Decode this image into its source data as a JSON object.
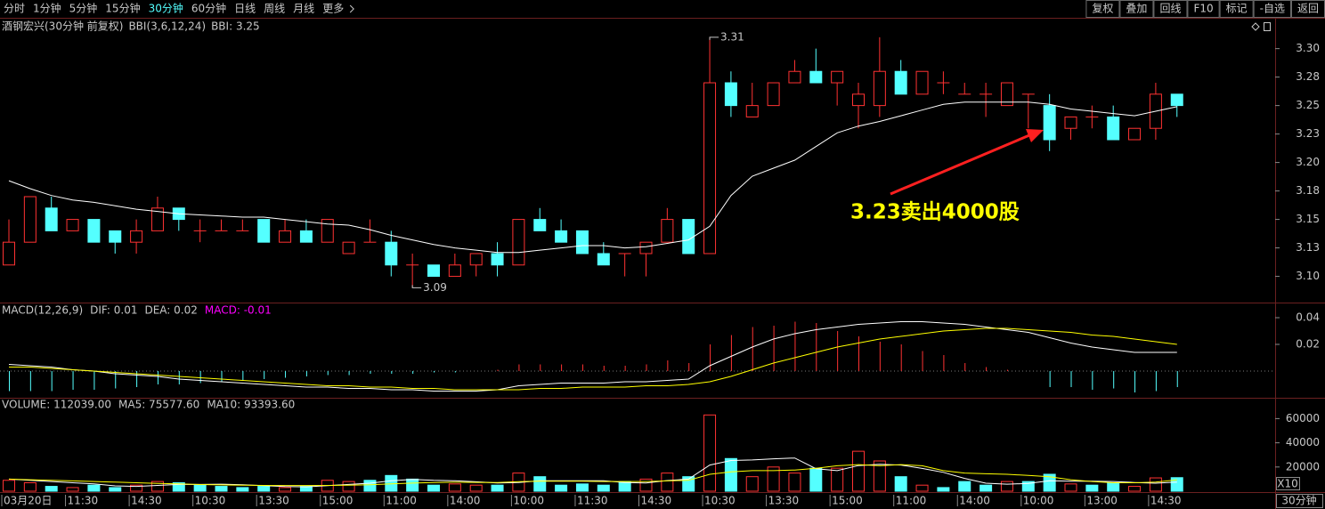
{
  "toolbar": {
    "periods": [
      "分时",
      "1分钟",
      "5分钟",
      "15分钟",
      "30分钟",
      "60分钟",
      "日线",
      "周线",
      "月线",
      "更多"
    ],
    "active": 4,
    "buttons": [
      "复权",
      "叠加",
      "回线",
      "F10",
      "标记",
      "-自选",
      "返回"
    ]
  },
  "footer": {
    "period": "30分钟"
  },
  "chart_data": [
    {
      "type": "candlestick",
      "title": "酒钢宏兴(30分钟 前复权)",
      "subtitle": "BBI(3,6,12,24)",
      "up_color": "#ff3232",
      "down_color": "#54ffff",
      "open": [
        3.11,
        3.13,
        3.16,
        3.14,
        3.15,
        3.14,
        3.13,
        3.14,
        3.16,
        3.14,
        3.14,
        3.14,
        3.15,
        3.13,
        3.14,
        3.13,
        3.12,
        3.13,
        3.13,
        3.11,
        3.11,
        3.1,
        3.11,
        3.12,
        3.11,
        3.15,
        3.14,
        3.14,
        3.12,
        3.12,
        3.12,
        3.13,
        3.15,
        3.12,
        3.27,
        3.24,
        3.25,
        3.27,
        3.28,
        3.27,
        3.25,
        3.25,
        3.28,
        3.26,
        3.27,
        3.26,
        3.26,
        3.25,
        3.26,
        3.25,
        3.23,
        3.24,
        3.24,
        3.22,
        3.23,
        3.26
      ],
      "high": [
        3.15,
        3.17,
        3.17,
        3.15,
        3.15,
        3.14,
        3.15,
        3.17,
        3.16,
        3.15,
        3.15,
        3.15,
        3.15,
        3.15,
        3.15,
        3.15,
        3.13,
        3.15,
        3.14,
        3.12,
        3.11,
        3.12,
        3.12,
        3.13,
        3.15,
        3.16,
        3.15,
        3.14,
        3.13,
        3.12,
        3.13,
        3.16,
        3.15,
        3.31,
        3.28,
        3.27,
        3.27,
        3.29,
        3.3,
        3.28,
        3.27,
        3.31,
        3.29,
        3.28,
        3.28,
        3.27,
        3.27,
        3.27,
        3.26,
        3.26,
        3.24,
        3.25,
        3.25,
        3.23,
        3.27,
        3.26
      ],
      "low": [
        3.11,
        3.13,
        3.14,
        3.14,
        3.13,
        3.12,
        3.12,
        3.14,
        3.14,
        3.13,
        3.14,
        3.14,
        3.13,
        3.13,
        3.13,
        3.13,
        3.12,
        3.13,
        3.1,
        3.09,
        3.1,
        3.1,
        3.1,
        3.1,
        3.11,
        3.14,
        3.13,
        3.12,
        3.11,
        3.1,
        3.1,
        3.13,
        3.12,
        3.12,
        3.24,
        3.24,
        3.25,
        3.27,
        3.27,
        3.25,
        3.23,
        3.24,
        3.26,
        3.26,
        3.26,
        3.26,
        3.24,
        3.25,
        3.23,
        3.21,
        3.22,
        3.23,
        3.22,
        3.22,
        3.22,
        3.24
      ],
      "close": [
        3.13,
        3.17,
        3.14,
        3.15,
        3.13,
        3.13,
        3.14,
        3.16,
        3.15,
        3.14,
        3.14,
        3.14,
        3.13,
        3.14,
        3.13,
        3.15,
        3.13,
        3.13,
        3.11,
        3.11,
        3.1,
        3.11,
        3.12,
        3.11,
        3.15,
        3.14,
        3.13,
        3.12,
        3.11,
        3.12,
        3.13,
        3.15,
        3.12,
        3.27,
        3.25,
        3.25,
        3.27,
        3.28,
        3.27,
        3.28,
        3.26,
        3.28,
        3.26,
        3.28,
        3.27,
        3.26,
        3.26,
        3.27,
        3.26,
        3.22,
        3.24,
        3.24,
        3.22,
        3.23,
        3.26,
        3.25
      ],
      "series": [
        {
          "name": "BBI: 3.25",
          "color": "#ffffff",
          "values": [
            3.184,
            3.177,
            3.171,
            3.167,
            3.165,
            3.162,
            3.159,
            3.157,
            3.155,
            3.154,
            3.153,
            3.152,
            3.152,
            3.15,
            3.148,
            3.146,
            3.145,
            3.141,
            3.136,
            3.132,
            3.128,
            3.125,
            3.123,
            3.121,
            3.121,
            3.123,
            3.125,
            3.127,
            3.127,
            3.125,
            3.126,
            3.129,
            3.132,
            3.144,
            3.171,
            3.188,
            3.195,
            3.202,
            3.214,
            3.226,
            3.232,
            3.236,
            3.241,
            3.246,
            3.251,
            3.253,
            3.253,
            3.253,
            3.253,
            3.251,
            3.247,
            3.245,
            3.243,
            3.241,
            3.245,
            3.249
          ]
        }
      ],
      "high_label": 3.31,
      "low_label": 3.09,
      "callout": "3.23卖出4000股",
      "ylim": [
        3.077,
        3.313
      ],
      "yticks": [
        {
          "value": 3.3,
          "label": "3.30"
        },
        {
          "value": 3.275,
          "label": "3.28"
        },
        {
          "value": 3.25,
          "label": "3.25"
        },
        {
          "value": 3.225,
          "label": "3.23"
        },
        {
          "value": 3.2,
          "label": "3.20"
        },
        {
          "value": 3.175,
          "label": "3.18"
        },
        {
          "value": 3.15,
          "label": "3.15"
        },
        {
          "value": 3.125,
          "label": "3.13"
        },
        {
          "value": 3.1,
          "label": "3.10"
        }
      ]
    },
    {
      "type": "macd",
      "title": "MACD(12,26,9)",
      "histogram": {
        "name": "MACD: -0.01",
        "up_color": "#ff3232",
        "down_color": "#54ffff",
        "values": [
          -0.015,
          -0.015,
          -0.015,
          -0.014,
          -0.014,
          -0.013,
          -0.012,
          -0.01,
          -0.01,
          -0.009,
          -0.008,
          -0.007,
          -0.006,
          -0.005,
          -0.004,
          -0.003,
          -0.003,
          -0.002,
          -0.002,
          -0.002,
          -0.001,
          -0.001,
          0,
          0.001,
          0.005,
          0.005,
          0.005,
          0.005,
          0.004,
          0.004,
          0.005,
          0.008,
          0.006,
          0.02,
          0.027,
          0.033,
          0.034,
          0.037,
          0.036,
          0.03,
          0.026,
          0.022,
          0.02,
          0.015,
          0.012,
          0.006,
          0.003,
          0.001,
          0,
          -0.012,
          -0.012,
          -0.014,
          -0.013,
          -0.016,
          -0.015,
          -0.012
        ]
      },
      "series": [
        {
          "name": "DIF: 0.01",
          "color": "#ffffff",
          "values": [
            0.005,
            0.004,
            0.003,
            0.001,
            0,
            -0.002,
            -0.003,
            -0.004,
            -0.006,
            -0.007,
            -0.008,
            -0.009,
            -0.01,
            -0.011,
            -0.012,
            -0.012,
            -0.013,
            -0.013,
            -0.014,
            -0.014,
            -0.015,
            -0.015,
            -0.015,
            -0.014,
            -0.011,
            -0.01,
            -0.009,
            -0.009,
            -0.009,
            -0.008,
            -0.008,
            -0.007,
            -0.006,
            0.004,
            0.011,
            0.018,
            0.024,
            0.028,
            0.031,
            0.033,
            0.035,
            0.036,
            0.037,
            0.037,
            0.036,
            0.035,
            0.033,
            0.031,
            0.029,
            0.025,
            0.021,
            0.018,
            0.016,
            0.014,
            0.014,
            0.014
          ]
        },
        {
          "name": "DEA: 0.02",
          "color": "#ffff00",
          "values": [
            0.003,
            0.003,
            0.002,
            0.001,
            0,
            -0.001,
            -0.002,
            -0.003,
            -0.004,
            -0.005,
            -0.006,
            -0.007,
            -0.008,
            -0.009,
            -0.01,
            -0.011,
            -0.011,
            -0.012,
            -0.012,
            -0.013,
            -0.013,
            -0.014,
            -0.014,
            -0.014,
            -0.014,
            -0.013,
            -0.013,
            -0.012,
            -0.012,
            -0.012,
            -0.011,
            -0.011,
            -0.01,
            -0.008,
            -0.004,
            0.001,
            0.006,
            0.01,
            0.014,
            0.018,
            0.021,
            0.024,
            0.026,
            0.028,
            0.03,
            0.031,
            0.032,
            0.032,
            0.031,
            0.03,
            0.029,
            0.027,
            0.026,
            0.024,
            0.022,
            0.02
          ]
        }
      ],
      "ylim": [
        -0.02,
        0.05
      ],
      "yticks": [
        0.04,
        0.02
      ]
    },
    {
      "type": "volume",
      "bars": {
        "name": "VOLUME: 112039.00",
        "up_color": "#ff3232",
        "down_color": "#54ffff",
        "values": [
          9000,
          7000,
          4000,
          3000,
          5000,
          3000,
          5000,
          8000,
          7000,
          5000,
          4000,
          3000,
          4000,
          3000,
          4000,
          9000,
          8000,
          9000,
          13000,
          10000,
          5000,
          6000,
          5000,
          5000,
          15000,
          12000,
          5000,
          6000,
          5000,
          8000,
          10000,
          15000,
          12000,
          63000,
          27000,
          12000,
          20000,
          15000,
          19000,
          19000,
          33000,
          25000,
          12000,
          5000,
          3000,
          8000,
          5000,
          8000,
          8000,
          14000,
          6000,
          5000,
          7000,
          4000,
          11000,
          11204
        ]
      },
      "series": [
        {
          "name": "MA5: 75577.60",
          "color": "#ffffff",
          "values": [
            10000,
            9000,
            8000,
            7000,
            6000,
            4400,
            4000,
            4800,
            5600,
            5600,
            5800,
            5400,
            4600,
            3800,
            3600,
            4600,
            5600,
            6600,
            8600,
            9800,
            9000,
            8600,
            7800,
            6800,
            7200,
            8600,
            8600,
            8600,
            8600,
            7200,
            6800,
            8800,
            10000,
            21600,
            25400,
            25800,
            26800,
            27400,
            18600,
            17000,
            21200,
            22200,
            21600,
            18800,
            15600,
            10600,
            6600,
            5800,
            6400,
            8600,
            8200,
            8200,
            8000,
            7200,
            6600,
            7558
          ]
        },
        {
          "name": "MA10: 93393.60",
          "color": "#ffff00",
          "values": [
            10000,
            9500,
            9000,
            8500,
            8000,
            7500,
            7000,
            6500,
            6000,
            5500,
            5200,
            5000,
            4800,
            4700,
            4700,
            4800,
            5000,
            5300,
            6000,
            6700,
            7200,
            7400,
            7300,
            7200,
            7900,
            8300,
            8300,
            8200,
            8000,
            8000,
            8000,
            8500,
            9000,
            14000,
            16000,
            17000,
            17000,
            17500,
            19000,
            21000,
            22000,
            21000,
            22000,
            21000,
            17000,
            15000,
            14400,
            14000,
            13000,
            12000,
            9500,
            8000,
            7000,
            7000,
            7500,
            9339
          ]
        }
      ],
      "unit_label": "X10",
      "ylim": [
        0,
        75000
      ],
      "yticks": [
        60000,
        40000,
        20000
      ],
      "categories": [
        "03月20日",
        null,
        null,
        "11:30",
        null,
        null,
        "14:30",
        null,
        null,
        "10:30",
        null,
        null,
        "13:30",
        null,
        null,
        "15:00",
        null,
        null,
        "11:00",
        null,
        null,
        "14:00",
        null,
        null,
        "10:00",
        null,
        null,
        "11:30",
        null,
        null,
        "14:30",
        null,
        null,
        "10:30",
        null,
        null,
        "13:30",
        null,
        null,
        "15:00",
        null,
        null,
        "11:00",
        null,
        null,
        "14:00",
        null,
        null,
        "10:00",
        null,
        null,
        "13:00",
        null,
        null,
        "14:30",
        null
      ]
    }
  ]
}
